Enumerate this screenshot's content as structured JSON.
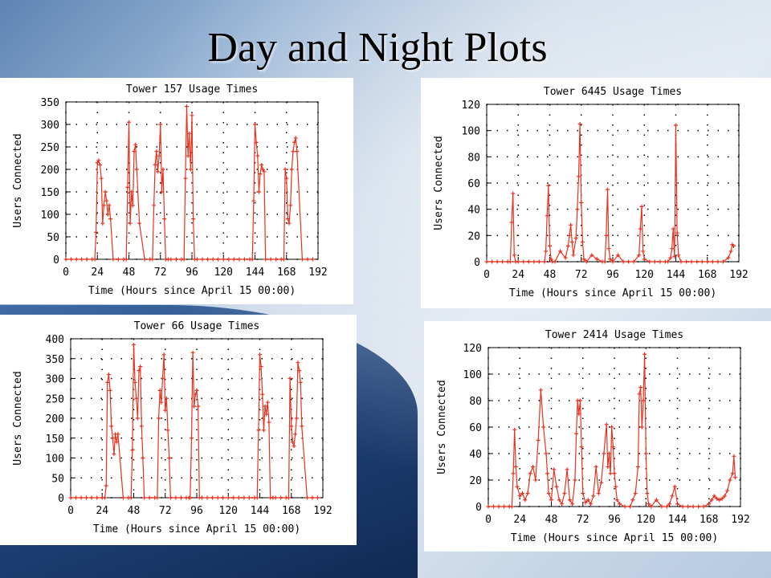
{
  "slide": {
    "title": "Day and Night Plots"
  },
  "chart_data": [
    {
      "type": "line",
      "title": "Tower 157 Usage Times",
      "xlabel": "Time (Hours since April 15 00:00)",
      "ylabel": "Users Connected",
      "xlim": [
        0,
        192
      ],
      "ylim": [
        0,
        350
      ],
      "xticks": [
        0,
        24,
        48,
        72,
        96,
        120,
        144,
        168,
        192
      ],
      "yticks": [
        0,
        50,
        100,
        150,
        200,
        250,
        300,
        350
      ],
      "grid": true,
      "color": "#e8321e",
      "series": [
        {
          "x": [
            0,
            4,
            8,
            12,
            16,
            20,
            22,
            23,
            24,
            25,
            26,
            27,
            28,
            29,
            30,
            31,
            32,
            33,
            34,
            36,
            40,
            44,
            46,
            47,
            48,
            49,
            50,
            51,
            52,
            53,
            54,
            56,
            60,
            64,
            66,
            67,
            68,
            69,
            70,
            71,
            72,
            73,
            74,
            75,
            76,
            78,
            80,
            84,
            88,
            90,
            91,
            92,
            93,
            94,
            95,
            96,
            97,
            98,
            100,
            104,
            108,
            112,
            116,
            120,
            124,
            128,
            132,
            136,
            140,
            142,
            143,
            144,
            145,
            146,
            147,
            148,
            149,
            150,
            151,
            152,
            156,
            160,
            164,
            166,
            167,
            168,
            169,
            170,
            171,
            172,
            173,
            174,
            175,
            176,
            180,
            184,
            188
          ],
          "y": [
            0,
            0,
            0,
            0,
            0,
            0,
            0,
            60,
            215,
            220,
            210,
            180,
            80,
            120,
            150,
            130,
            100,
            120,
            90,
            0,
            0,
            0,
            0,
            160,
            305,
            80,
            150,
            120,
            240,
            255,
            200,
            80,
            0,
            0,
            0,
            120,
            210,
            240,
            195,
            230,
            300,
            150,
            200,
            90,
            0,
            0,
            0,
            0,
            0,
            0,
            180,
            340,
            230,
            280,
            200,
            320,
            90,
            0,
            0,
            0,
            0,
            0,
            0,
            0,
            0,
            0,
            0,
            0,
            0,
            0,
            130,
            300,
            260,
            230,
            150,
            190,
            210,
            200,
            195,
            0,
            0,
            0,
            0,
            0,
            200,
            180,
            90,
            80,
            120,
            200,
            240,
            260,
            270,
            240,
            0,
            0,
            0
          ]
        }
      ]
    },
    {
      "type": "line",
      "title": "Tower 6445 Usage Times",
      "xlabel": "Time (Hours since April 15 00:00)",
      "ylabel": "Users Connected",
      "xlim": [
        0,
        192
      ],
      "ylim": [
        0,
        120
      ],
      "xticks": [
        0,
        24,
        48,
        72,
        96,
        120,
        144,
        168,
        192
      ],
      "yticks": [
        0,
        20,
        40,
        60,
        80,
        100,
        120
      ],
      "grid": true,
      "color": "#e8321e",
      "series": [
        {
          "x": [
            0,
            4,
            8,
            12,
            16,
            18,
            19,
            20,
            21,
            22,
            24,
            28,
            32,
            36,
            40,
            44,
            45,
            46,
            47,
            48,
            49,
            50,
            52,
            56,
            60,
            62,
            63,
            64,
            65,
            66,
            68,
            69,
            70,
            71,
            72,
            73,
            74,
            76,
            80,
            84,
            88,
            90,
            91,
            92,
            93,
            94,
            96,
            100,
            104,
            108,
            112,
            116,
            117,
            118,
            119,
            120,
            124,
            128,
            132,
            136,
            138,
            140,
            141,
            142,
            143,
            144,
            145,
            146,
            148,
            152,
            156,
            160,
            164,
            168,
            172,
            176,
            180,
            184,
            186,
            187,
            188
          ],
          "y": [
            0,
            0,
            0,
            0,
            0,
            0,
            30,
            52,
            5,
            0,
            0,
            0,
            0,
            0,
            0,
            0,
            8,
            35,
            58,
            12,
            2,
            0,
            0,
            8,
            3,
            12,
            20,
            28,
            15,
            5,
            18,
            40,
            65,
            105,
            45,
            15,
            2,
            0,
            5,
            2,
            0,
            0,
            20,
            55,
            10,
            2,
            0,
            5,
            0,
            0,
            0,
            5,
            25,
            42,
            8,
            2,
            0,
            0,
            0,
            0,
            0,
            3,
            10,
            25,
            4,
            104,
            22,
            5,
            0,
            0,
            0,
            0,
            0,
            0,
            0,
            0,
            0,
            3,
            8,
            13,
            12
          ]
        }
      ]
    },
    {
      "type": "line",
      "title": "Tower 66 Usage Times",
      "xlabel": "Time (Hours since April 15 00:00)",
      "ylabel": "Users Connected",
      "xlim": [
        0,
        192
      ],
      "ylim": [
        0,
        400
      ],
      "xticks": [
        0,
        24,
        48,
        72,
        96,
        120,
        144,
        168,
        192
      ],
      "yticks": [
        0,
        50,
        100,
        150,
        200,
        250,
        300,
        350,
        400
      ],
      "grid": true,
      "color": "#e8321e",
      "series": [
        {
          "x": [
            0,
            4,
            8,
            12,
            16,
            20,
            24,
            26,
            27,
            28,
            29,
            30,
            31,
            32,
            33,
            34,
            35,
            36,
            40,
            44,
            46,
            47,
            48,
            49,
            50,
            51,
            52,
            53,
            54,
            55,
            56,
            60,
            64,
            66,
            67,
            68,
            69,
            70,
            71,
            72,
            73,
            74,
            75,
            76,
            80,
            84,
            88,
            90,
            91,
            92,
            93,
            94,
            95,
            96,
            97,
            98,
            100,
            104,
            108,
            112,
            116,
            120,
            124,
            128,
            132,
            136,
            140,
            142,
            143,
            144,
            145,
            146,
            147,
            148,
            149,
            150,
            151,
            152,
            154,
            156,
            160,
            164,
            166,
            167,
            168,
            169,
            170,
            171,
            172,
            173,
            174,
            175,
            176,
            180,
            184,
            188
          ],
          "y": [
            0,
            0,
            0,
            0,
            0,
            0,
            0,
            0,
            30,
            290,
            310,
            270,
            180,
            150,
            110,
            160,
            140,
            160,
            0,
            0,
            0,
            120,
            385,
            290,
            250,
            200,
            320,
            330,
            180,
            100,
            0,
            0,
            0,
            0,
            200,
            270,
            240,
            300,
            360,
            220,
            250,
            170,
            100,
            0,
            0,
            0,
            0,
            0,
            0,
            150,
            365,
            230,
            260,
            270,
            230,
            0,
            0,
            0,
            0,
            0,
            0,
            0,
            0,
            0,
            0,
            0,
            0,
            0,
            170,
            360,
            330,
            260,
            170,
            230,
            210,
            240,
            190,
            0,
            0,
            0,
            0,
            0,
            0,
            300,
            180,
            140,
            130,
            160,
            200,
            340,
            320,
            290,
            180,
            0,
            0,
            0
          ]
        }
      ]
    },
    {
      "type": "line",
      "title": "Tower 2414 Usage Times",
      "xlabel": "Time (Hours since April 15 00:00)",
      "ylabel": "Users Connected",
      "xlim": [
        0,
        192
      ],
      "ylim": [
        0,
        120
      ],
      "xticks": [
        0,
        24,
        48,
        72,
        96,
        120,
        144,
        168,
        192
      ],
      "yticks": [
        0,
        20,
        40,
        60,
        80,
        100,
        120
      ],
      "grid": true,
      "color": "#e8321e",
      "series": [
        {
          "x": [
            0,
            4,
            8,
            12,
            16,
            18,
            19,
            20,
            21,
            22,
            24,
            26,
            28,
            30,
            32,
            34,
            36,
            38,
            40,
            42,
            44,
            45,
            46,
            48,
            50,
            52,
            54,
            56,
            58,
            60,
            62,
            64,
            66,
            67,
            68,
            69,
            70,
            71,
            72,
            74,
            76,
            78,
            80,
            82,
            84,
            86,
            88,
            90,
            91,
            92,
            93,
            94,
            95,
            96,
            97,
            98,
            100,
            104,
            108,
            110,
            112,
            114,
            115,
            116,
            117,
            118,
            119,
            120,
            121,
            122,
            124,
            128,
            132,
            136,
            138,
            140,
            142,
            144,
            148,
            152,
            156,
            160,
            164,
            168,
            170,
            172,
            174,
            176,
            178,
            180,
            182,
            184,
            186,
            187,
            188
          ],
          "y": [
            0,
            0,
            0,
            0,
            0,
            0,
            25,
            58,
            30,
            15,
            8,
            10,
            5,
            10,
            25,
            30,
            20,
            50,
            88,
            60,
            40,
            25,
            10,
            5,
            28,
            15,
            5,
            2,
            10,
            28,
            5,
            2,
            20,
            55,
            80,
            70,
            80,
            45,
            10,
            3,
            5,
            2,
            8,
            30,
            10,
            18,
            40,
            62,
            30,
            40,
            25,
            60,
            45,
            25,
            15,
            5,
            2,
            0,
            0,
            5,
            10,
            30,
            85,
            90,
            60,
            80,
            115,
            40,
            10,
            2,
            0,
            5,
            0,
            0,
            2,
            8,
            15,
            2,
            0,
            0,
            0,
            0,
            0,
            2,
            5,
            8,
            6,
            5,
            6,
            8,
            12,
            20,
            25,
            38,
            22
          ]
        }
      ]
    }
  ]
}
